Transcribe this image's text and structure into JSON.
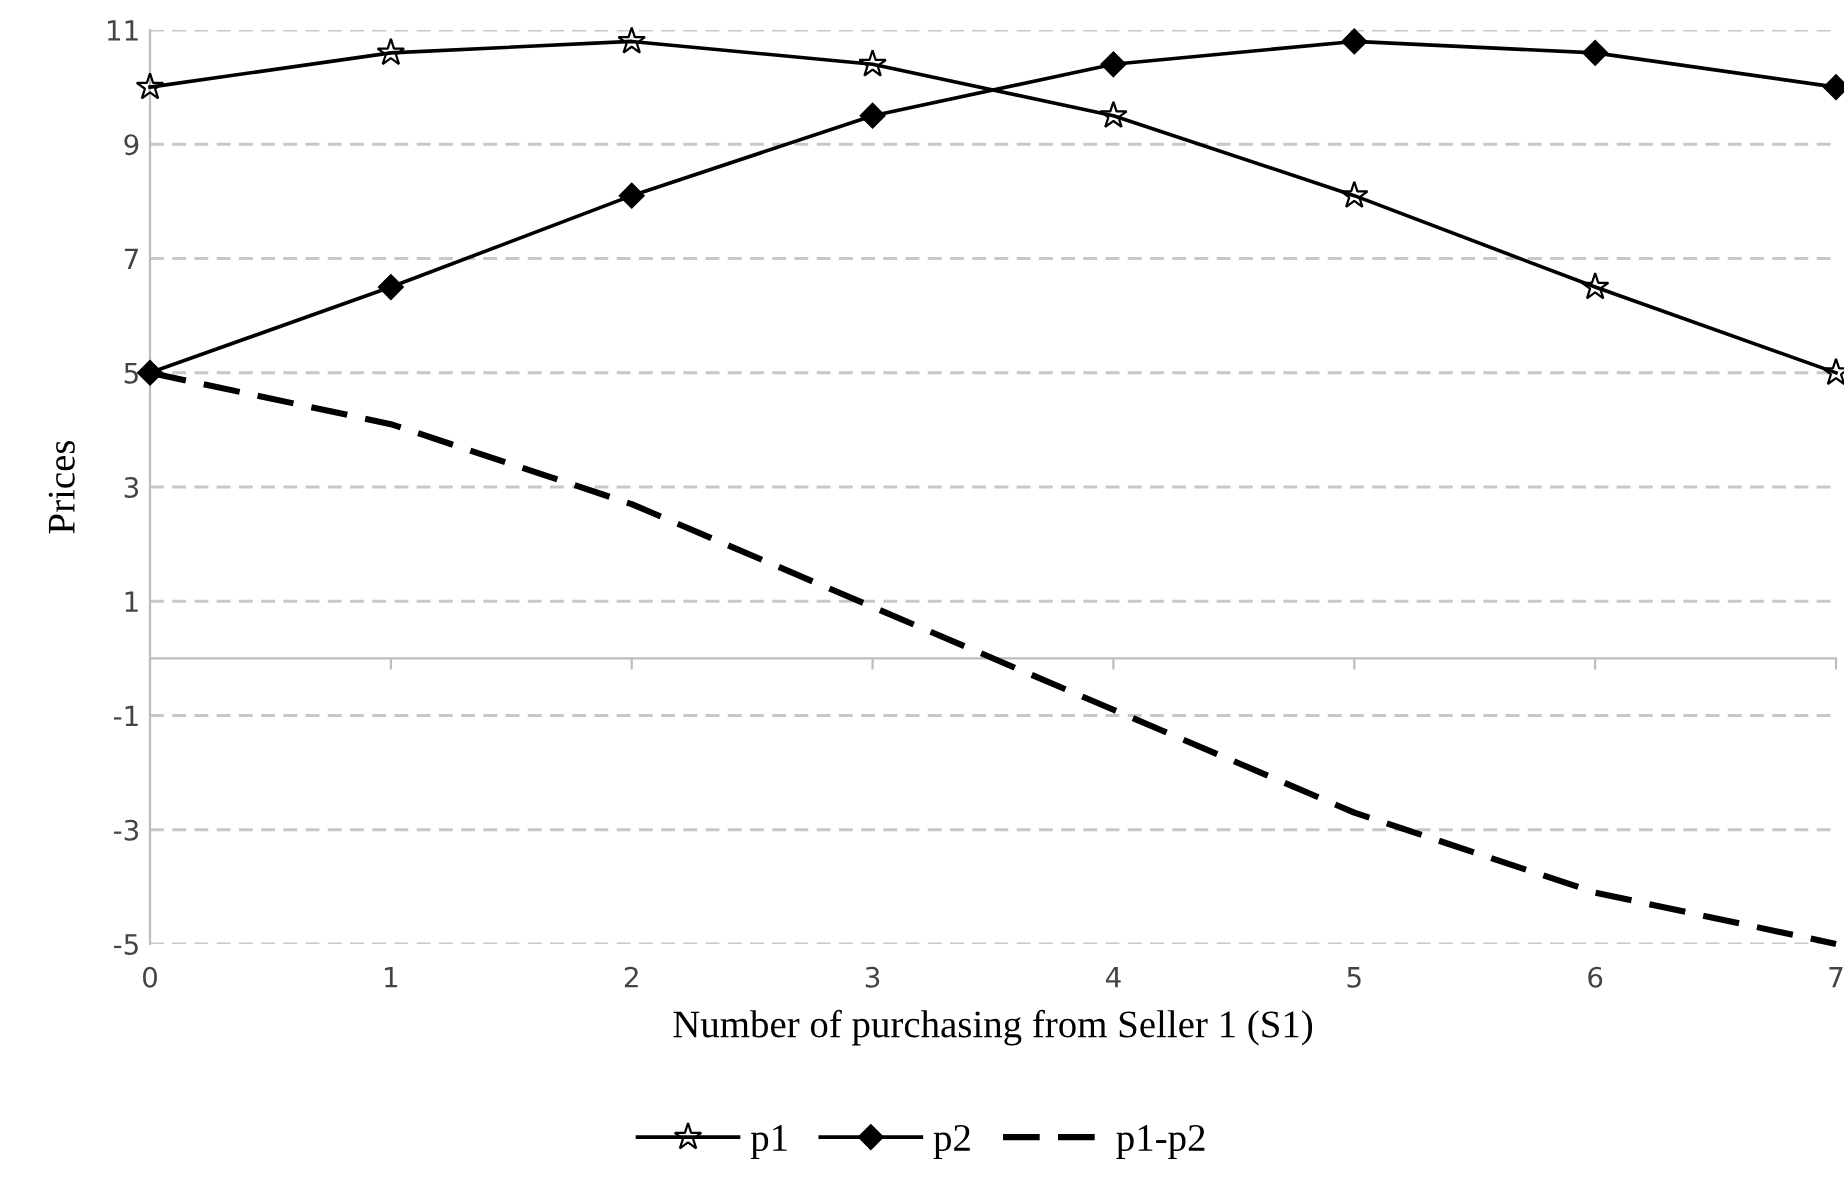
{
  "chart_data": {
    "type": "line",
    "xlabel": "Number of purchasing from Seller 1 (S1)",
    "ylabel": "Prices",
    "x": [
      0,
      1,
      2,
      3,
      4,
      5,
      6,
      7
    ],
    "series": [
      {
        "name": "p1",
        "color": "#000000",
        "marker": "star",
        "line_style": "solid",
        "values": [
          10.0,
          10.6,
          10.8,
          10.4,
          9.5,
          8.1,
          6.5,
          5.0
        ]
      },
      {
        "name": "p2",
        "color": "#000000",
        "marker": "diamond",
        "line_style": "solid",
        "values": [
          5.0,
          6.5,
          8.1,
          9.5,
          10.4,
          10.8,
          10.6,
          10.0
        ]
      },
      {
        "name": "p1-p2",
        "color": "#000000",
        "marker": "none",
        "line_style": "dashed",
        "values": [
          5.0,
          4.1,
          2.7,
          0.9,
          -0.9,
          -2.7,
          -4.1,
          -5.0
        ]
      }
    ],
    "xlim": [
      0,
      7
    ],
    "xticks": [
      0,
      1,
      2,
      3,
      4,
      5,
      6,
      7
    ],
    "ylim": [
      -5,
      11
    ],
    "yticks": [
      -5,
      -3,
      -1,
      1,
      3,
      5,
      7,
      9,
      11
    ],
    "grid": "y",
    "legend": "bottom"
  }
}
